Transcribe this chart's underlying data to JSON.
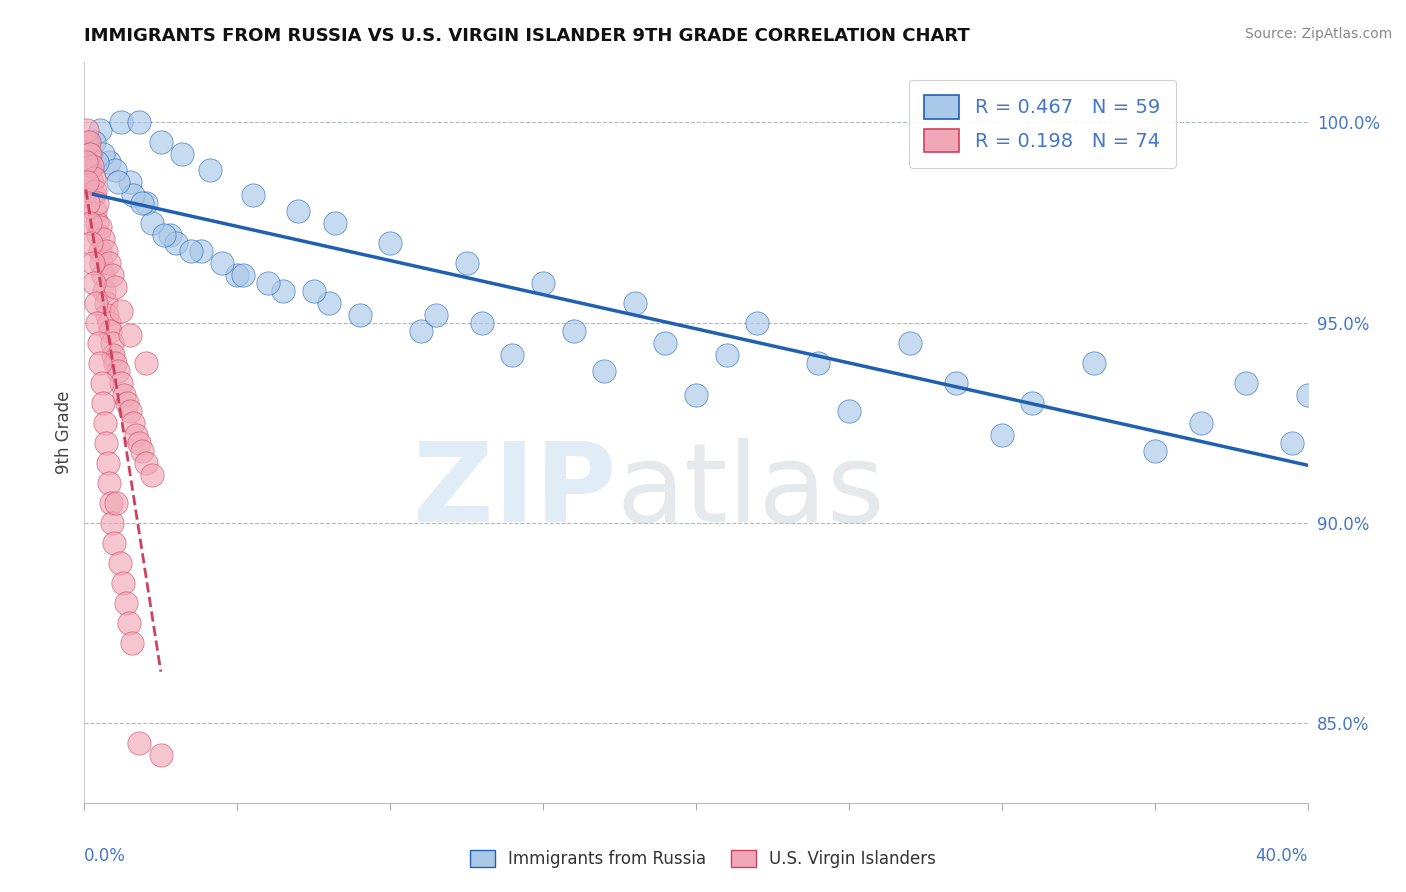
{
  "title": "IMMIGRANTS FROM RUSSIA VS U.S. VIRGIN ISLANDER 9TH GRADE CORRELATION CHART",
  "source": "Source: ZipAtlas.com",
  "ylabel": "9th Grade",
  "xlim": [
    0.0,
    40.0
  ],
  "ylim": [
    83.0,
    101.5
  ],
  "yticks": [
    85.0,
    90.0,
    95.0,
    100.0
  ],
  "ytick_labels": [
    "85.0%",
    "90.0%",
    "95.0%",
    "100.0%"
  ],
  "blue_r": "0.467",
  "blue_n": "59",
  "pink_r": "0.198",
  "pink_n": "74",
  "blue_color": "#aac8e8",
  "pink_color": "#f0a8b8",
  "trend_blue": "#2060b0",
  "trend_pink": "#d04060",
  "dashed_line_color": "#b0b8c8",
  "grid_color": "#d8dde8",
  "blue_scatter_x": [
    0.5,
    1.2,
    1.8,
    2.5,
    3.2,
    4.1,
    5.5,
    7.0,
    8.2,
    10.0,
    12.5,
    15.0,
    18.0,
    22.0,
    27.0,
    33.0,
    38.0,
    40.0,
    0.3,
    0.8,
    1.5,
    2.0,
    2.8,
    3.8,
    5.0,
    6.5,
    9.0,
    11.0,
    14.0,
    17.0,
    20.0,
    25.0,
    30.0,
    35.0,
    0.6,
    1.0,
    1.6,
    2.2,
    3.0,
    4.5,
    6.0,
    8.0,
    13.0,
    19.0,
    24.0,
    28.5,
    31.0,
    36.5,
    39.5,
    0.4,
    1.1,
    1.9,
    2.6,
    3.5,
    5.2,
    7.5,
    11.5,
    16.0,
    21.0
  ],
  "blue_scatter_y": [
    99.8,
    100.0,
    100.0,
    99.5,
    99.2,
    98.8,
    98.2,
    97.8,
    97.5,
    97.0,
    96.5,
    96.0,
    95.5,
    95.0,
    94.5,
    94.0,
    93.5,
    93.2,
    99.5,
    99.0,
    98.5,
    98.0,
    97.2,
    96.8,
    96.2,
    95.8,
    95.2,
    94.8,
    94.2,
    93.8,
    93.2,
    92.8,
    92.2,
    91.8,
    99.2,
    98.8,
    98.2,
    97.5,
    97.0,
    96.5,
    96.0,
    95.5,
    95.0,
    94.5,
    94.0,
    93.5,
    93.0,
    92.5,
    92.0,
    99.0,
    98.5,
    98.0,
    97.2,
    96.8,
    96.2,
    95.8,
    95.2,
    94.8,
    94.2
  ],
  "pink_scatter_x": [
    0.1,
    0.15,
    0.2,
    0.25,
    0.3,
    0.35,
    0.4,
    0.45,
    0.5,
    0.55,
    0.6,
    0.65,
    0.7,
    0.75,
    0.8,
    0.85,
    0.9,
    0.95,
    1.0,
    1.1,
    1.2,
    1.3,
    1.4,
    1.5,
    1.6,
    1.7,
    1.8,
    1.9,
    2.0,
    2.2,
    0.1,
    0.15,
    0.2,
    0.25,
    0.3,
    0.35,
    0.4,
    0.5,
    0.6,
    0.7,
    0.8,
    0.9,
    1.0,
    1.2,
    1.5,
    2.0,
    0.05,
    0.08,
    0.12,
    0.18,
    0.22,
    0.28,
    0.32,
    0.38,
    0.42,
    0.48,
    0.52,
    0.58,
    0.62,
    0.68,
    0.72,
    0.78,
    0.82,
    0.88,
    0.92,
    0.98,
    1.05,
    1.15,
    1.25,
    1.35,
    1.45,
    1.55,
    1.8,
    2.5
  ],
  "pink_scatter_y": [
    99.5,
    99.2,
    98.8,
    98.5,
    98.2,
    97.8,
    97.5,
    97.2,
    96.8,
    96.5,
    96.2,
    95.8,
    95.5,
    95.2,
    95.0,
    94.8,
    94.5,
    94.2,
    94.0,
    93.8,
    93.5,
    93.2,
    93.0,
    92.8,
    92.5,
    92.2,
    92.0,
    91.8,
    91.5,
    91.2,
    99.8,
    99.5,
    99.2,
    98.9,
    98.6,
    98.3,
    98.0,
    97.4,
    97.1,
    96.8,
    96.5,
    96.2,
    95.9,
    95.3,
    94.7,
    94.0,
    99.0,
    98.5,
    98.0,
    97.5,
    97.0,
    96.5,
    96.0,
    95.5,
    95.0,
    94.5,
    94.0,
    93.5,
    93.0,
    92.5,
    92.0,
    91.5,
    91.0,
    90.5,
    90.0,
    89.5,
    90.5,
    89.0,
    88.5,
    88.0,
    87.5,
    87.0,
    84.5,
    84.2
  ]
}
